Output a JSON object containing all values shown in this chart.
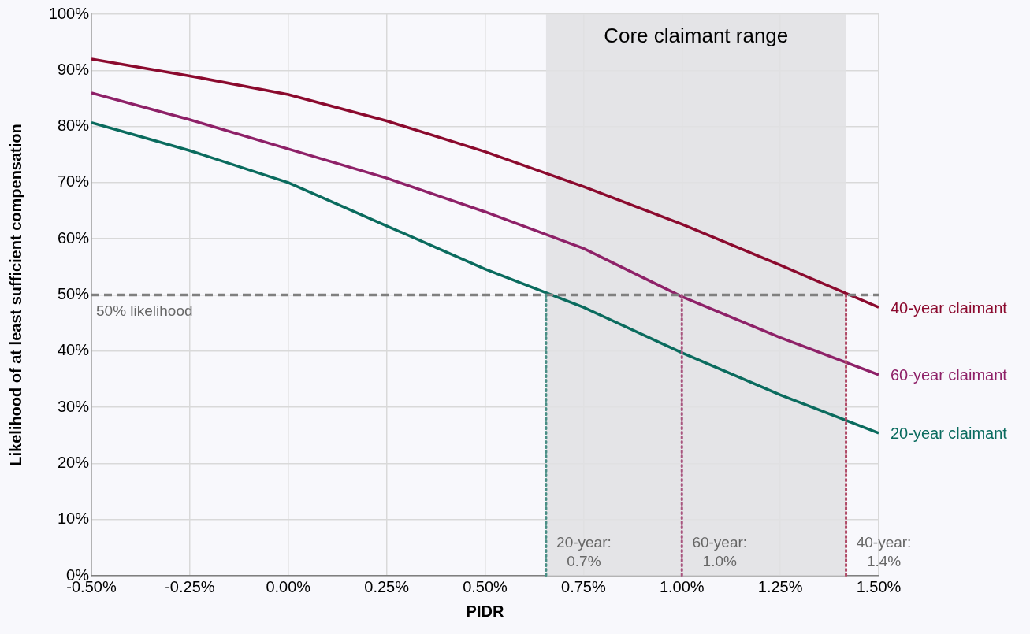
{
  "chart_data": {
    "type": "line",
    "xlabel": "PIDR",
    "ylabel": "Likelihood of at least sufficient compensation",
    "x": [
      -0.5,
      -0.25,
      0,
      0.25,
      0.5,
      0.75,
      1.0,
      1.25,
      1.5
    ],
    "series": [
      {
        "name": "40-year claimant",
        "color": "#8b0a2e",
        "values": [
          92.0,
          89.0,
          85.7,
          81.0,
          75.5,
          69.3,
          62.6,
          55.3,
          47.8
        ]
      },
      {
        "name": "60-year claimant",
        "color": "#8e2168",
        "values": [
          86.0,
          81.2,
          76.0,
          70.8,
          64.8,
          58.3,
          49.7,
          42.4,
          35.8
        ]
      },
      {
        "name": "20-year claimant",
        "color": "#0a6b5e",
        "values": [
          80.7,
          75.7,
          70.0,
          62.3,
          54.6,
          47.8,
          39.7,
          32.2,
          25.4
        ]
      }
    ],
    "xlim": [
      -0.5,
      1.5
    ],
    "xticks": [
      {
        "value": -0.5,
        "label": "-0.50%"
      },
      {
        "value": -0.25,
        "label": "-0.25%"
      },
      {
        "value": 0,
        "label": "0.00%"
      },
      {
        "value": 0.25,
        "label": "0.25%"
      },
      {
        "value": 0.5,
        "label": "0.50%"
      },
      {
        "value": 0.75,
        "label": "0.75%"
      },
      {
        "value": 1.0,
        "label": "1.00%"
      },
      {
        "value": 1.25,
        "label": "1.25%"
      },
      {
        "value": 1.5,
        "label": "1.50%"
      }
    ],
    "ylim": [
      0,
      100
    ],
    "yticks": [
      {
        "value": 0,
        "label": "0%"
      },
      {
        "value": 10,
        "label": "10%"
      },
      {
        "value": 20,
        "label": "20%"
      },
      {
        "value": 30,
        "label": "30%"
      },
      {
        "value": 40,
        "label": "40%"
      },
      {
        "value": 50,
        "label": "50%"
      },
      {
        "value": 60,
        "label": "60%"
      },
      {
        "value": 70,
        "label": "70%"
      },
      {
        "value": 80,
        "label": "80%"
      },
      {
        "value": 90,
        "label": "90%"
      },
      {
        "value": 100,
        "label": "100%"
      }
    ],
    "bands": [
      {
        "axis": "x",
        "from": 0.655,
        "to": 1.417,
        "label": "Core claimant range",
        "color": "#e1e1e3"
      }
    ],
    "ref_lines": [
      {
        "axis": "y",
        "value": 50,
        "label": "50% likelihood",
        "color": "#808080",
        "line_style": "dashed"
      },
      {
        "axis": "x",
        "value": 0.655,
        "label": "20-year:\n0.7%",
        "color": "#4a8f86",
        "line_style": "dotted"
      },
      {
        "axis": "x",
        "value": 1.0,
        "label": "60-year:\n1.0%",
        "color": "#a8557f",
        "line_style": "dotted"
      },
      {
        "axis": "x",
        "value": 1.417,
        "label": "40-year:\n1.4%",
        "color": "#b04a66",
        "line_style": "dotted"
      }
    ],
    "grid": true,
    "legend": false,
    "marker": "none",
    "line_style": "solid"
  }
}
